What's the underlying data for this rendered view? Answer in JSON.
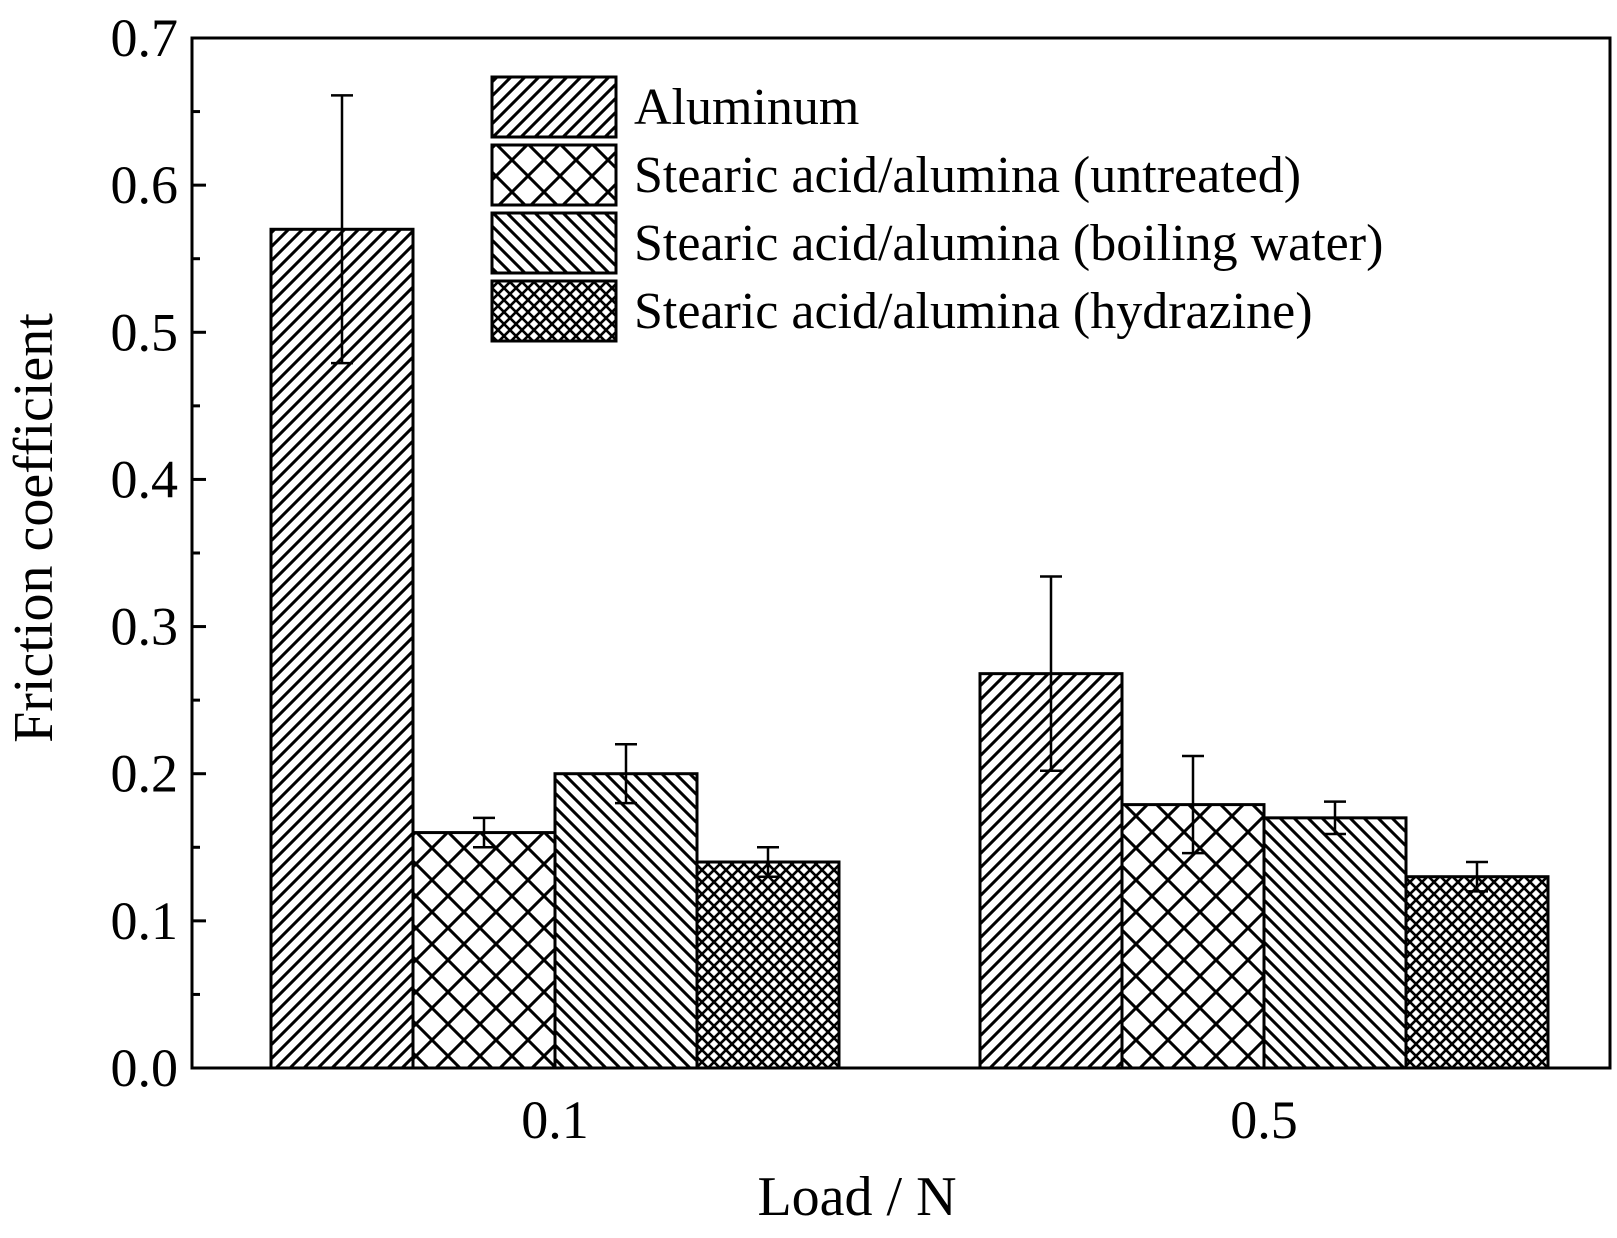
{
  "chart_data": {
    "type": "bar",
    "title": "",
    "xlabel": "Load / N",
    "ylabel": "Friction coefficient",
    "categories": [
      "0.1",
      "0.5"
    ],
    "ylim": [
      0,
      0.7
    ],
    "yticks": [
      "0.0",
      "0.1",
      "0.2",
      "0.3",
      "0.4",
      "0.5",
      "0.6",
      "0.7"
    ],
    "grid": false,
    "legend_position": "top-center",
    "series": [
      {
        "name": "Aluminum",
        "pattern": "diagonal-forward",
        "values": [
          0.57,
          0.268
        ],
        "errors": [
          0.091,
          0.066
        ]
      },
      {
        "name": "Stearic acid/alumina (untreated)",
        "pattern": "crosshatch-wide",
        "values": [
          0.16,
          0.179
        ],
        "errors": [
          0.01,
          0.033
        ]
      },
      {
        "name": "Stearic acid/alumina (boiling water)",
        "pattern": "diagonal-backward",
        "values": [
          0.2,
          0.17
        ],
        "errors": [
          0.02,
          0.011
        ]
      },
      {
        "name": "Stearic acid/alumina (hydrazine)",
        "pattern": "crosshatch-fine",
        "values": [
          0.14,
          0.13
        ],
        "errors": [
          0.01,
          0.01
        ]
      }
    ]
  }
}
